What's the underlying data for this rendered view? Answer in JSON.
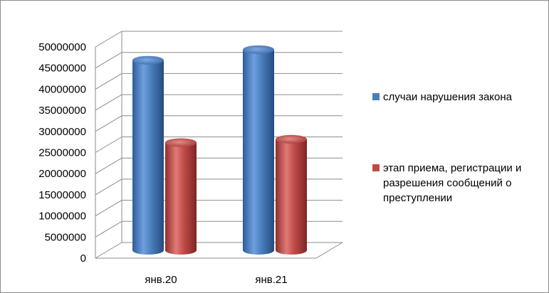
{
  "chart_data": {
    "type": "bar",
    "style": "3d-cylinder",
    "categories": [
      "янв.20",
      "янв.21"
    ],
    "series": [
      {
        "name": "случаи нарушения закона",
        "color": "#4a7ebb",
        "values": [
          45000000,
          47500000
        ]
      },
      {
        "name": "этап приема, регистрации и разрешения сообщений о преступлении",
        "color": "#be4b48",
        "values": [
          25500000,
          26300000
        ]
      }
    ],
    "yticks": [
      "0",
      "5000000",
      "10000000",
      "15000000",
      "20000000",
      "25000000",
      "30000000",
      "35000000",
      "40000000",
      "45000000",
      "50000000"
    ],
    "ylim": [
      0,
      50000000
    ],
    "grid": true,
    "legend_position": "right"
  }
}
